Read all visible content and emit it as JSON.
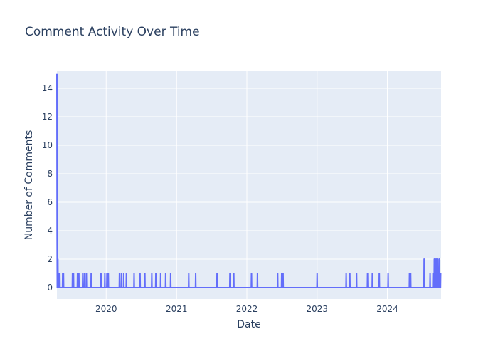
{
  "chart_data": {
    "type": "line",
    "title": "Comment Activity Over Time",
    "xlabel": "Date",
    "ylabel": "Number of Comments",
    "x_ticks": [
      "2020",
      "2021",
      "2022",
      "2023",
      "2024"
    ],
    "y_ticks": [
      "0",
      "2",
      "4",
      "6",
      "8",
      "10",
      "12",
      "14"
    ],
    "xlim": [
      "2019-04-20",
      "2024-10-06"
    ],
    "ylim": [
      -0.8,
      15.2
    ],
    "grid": true,
    "legend": "none",
    "colors": {
      "line": "#636efa",
      "plot_bg": "#e5ecf6",
      "grid": "#ffffff",
      "text": "#2a3f5f"
    },
    "series": [
      {
        "points": [
          [
            "2019-04-20",
            15
          ],
          [
            "2019-04-21",
            4
          ],
          [
            "2019-04-23",
            1
          ],
          [
            "2019-04-25",
            2
          ],
          [
            "2019-04-28",
            1
          ],
          [
            "2019-05-02",
            1
          ],
          [
            "2019-05-05",
            1
          ],
          [
            "2019-05-20",
            1
          ],
          [
            "2019-05-24",
            1
          ],
          [
            "2019-07-10",
            1
          ],
          [
            "2019-07-15",
            1
          ],
          [
            "2019-08-05",
            1
          ],
          [
            "2019-08-12",
            1
          ],
          [
            "2019-09-01",
            1
          ],
          [
            "2019-09-10",
            1
          ],
          [
            "2019-09-20",
            1
          ],
          [
            "2019-10-15",
            1
          ],
          [
            "2019-12-05",
            1
          ],
          [
            "2019-12-25",
            1
          ],
          [
            "2020-01-05",
            1
          ],
          [
            "2020-01-12",
            1
          ],
          [
            "2020-03-10",
            1
          ],
          [
            "2020-03-20",
            1
          ],
          [
            "2020-04-01",
            1
          ],
          [
            "2020-04-15",
            1
          ],
          [
            "2020-05-25",
            1
          ],
          [
            "2020-06-25",
            1
          ],
          [
            "2020-07-20",
            1
          ],
          [
            "2020-08-25",
            1
          ],
          [
            "2020-09-15",
            1
          ],
          [
            "2020-10-10",
            1
          ],
          [
            "2020-11-05",
            1
          ],
          [
            "2020-12-01",
            1
          ],
          [
            "2021-03-05",
            1
          ],
          [
            "2021-04-10",
            1
          ],
          [
            "2021-07-30",
            1
          ],
          [
            "2021-10-05",
            1
          ],
          [
            "2021-10-25",
            1
          ],
          [
            "2022-01-25",
            1
          ],
          [
            "2022-02-25",
            1
          ],
          [
            "2022-06-10",
            1
          ],
          [
            "2022-07-01",
            1
          ],
          [
            "2022-07-08",
            1
          ],
          [
            "2023-01-01",
            1
          ],
          [
            "2023-06-01",
            1
          ],
          [
            "2023-06-20",
            1
          ],
          [
            "2023-07-25",
            1
          ],
          [
            "2023-09-20",
            1
          ],
          [
            "2023-10-15",
            1
          ],
          [
            "2023-11-20",
            1
          ],
          [
            "2024-01-05",
            1
          ],
          [
            "2024-04-25",
            1
          ],
          [
            "2024-05-01",
            1
          ],
          [
            "2024-07-10",
            2
          ],
          [
            "2024-08-10",
            1
          ],
          [
            "2024-08-25",
            1
          ],
          [
            "2024-09-01",
            2
          ],
          [
            "2024-09-05",
            2
          ],
          [
            "2024-09-10",
            2
          ],
          [
            "2024-09-14",
            2
          ],
          [
            "2024-09-18",
            2
          ],
          [
            "2024-09-22",
            1
          ],
          [
            "2024-09-26",
            2
          ],
          [
            "2024-09-30",
            1
          ],
          [
            "2024-10-04",
            1
          ]
        ]
      }
    ]
  }
}
